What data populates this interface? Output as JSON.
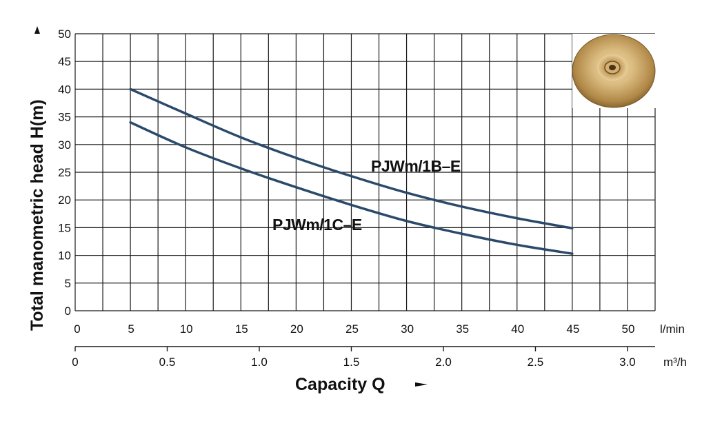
{
  "chart_data": {
    "type": "line",
    "ylabel": "Total manometric head  H(m)",
    "xlabel": "Capacity  Q",
    "ylim": [
      0,
      50
    ],
    "y_ticks": [
      0,
      5,
      10,
      15,
      20,
      25,
      30,
      35,
      40,
      45,
      50
    ],
    "xlim_lmin": [
      0,
      52.5
    ],
    "x_ticks_lmin": [
      "0",
      "5",
      "10",
      "15",
      "20",
      "25",
      "30",
      "35",
      "40",
      "45",
      "50"
    ],
    "x_unit_lmin": "l/min",
    "x_ticks_m3h": [
      "0",
      "0.5",
      "1.0",
      "1.5",
      "2.0",
      "2.5",
      "3.0"
    ],
    "x_unit_m3h": "m³/h",
    "grid": true,
    "series": [
      {
        "name": "PJWm/1B–E",
        "x": [
          5,
          10,
          15,
          20,
          25,
          30,
          35,
          40,
          45
        ],
        "y": [
          40,
          35.6,
          31.3,
          27.6,
          24.3,
          21.3,
          18.8,
          16.7,
          14.9
        ]
      },
      {
        "name": "PJWm/1C–E",
        "x": [
          5,
          10,
          15,
          20,
          25,
          30,
          35,
          40,
          45
        ],
        "y": [
          34,
          29.5,
          25.7,
          22.3,
          19.1,
          16.2,
          13.9,
          11.9,
          10.3
        ]
      }
    ]
  },
  "colors": {
    "curve": "#2b4a6b",
    "grid": "#1a1a1a",
    "text": "#111111",
    "impeller_light": "#d7b784",
    "impeller_dark": "#a57c3f"
  },
  "images": {
    "impeller": "impeller-photo"
  }
}
